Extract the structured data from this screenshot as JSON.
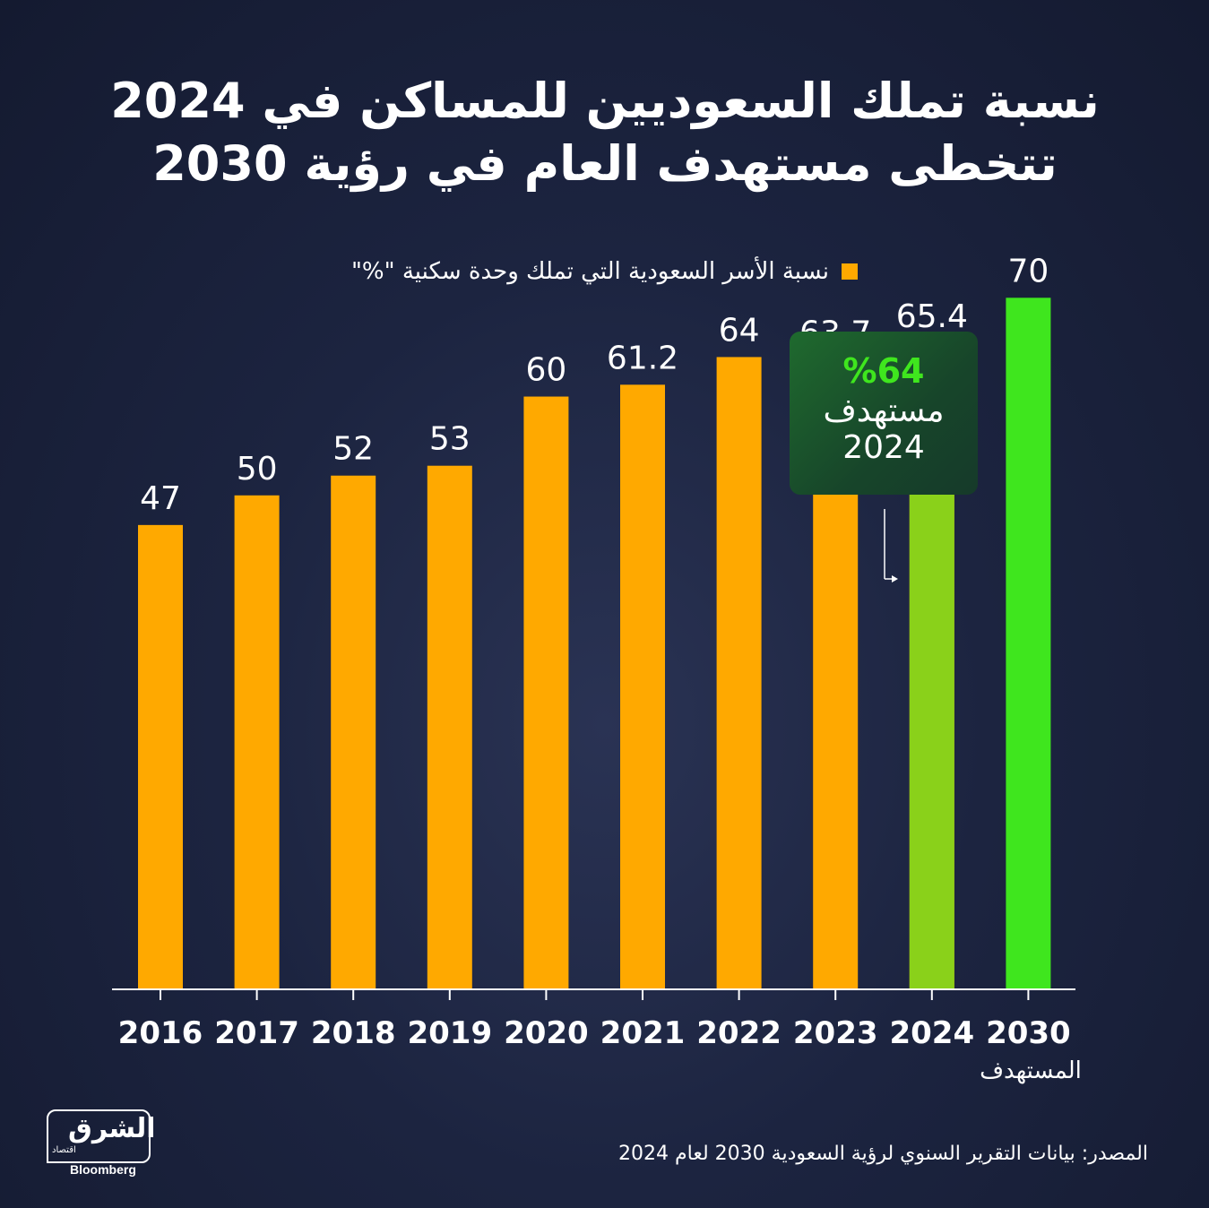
{
  "header": {
    "title": "نسبة تملك السعوديين للمساكن في 2024 تتخطى مستهدف العام في رؤية 2030"
  },
  "legend": {
    "label": "نسبة الأسر السعودية التي تملك وحدة سكنية \"%\"",
    "color": "#ffa900"
  },
  "target_callout": {
    "value": "%64",
    "label": "مستهدف",
    "year": "2024"
  },
  "x_sublabel": "المستهدف",
  "source": "المصدر: بيانات التقرير السنوي لرؤية السعودية 2030 لعام 2024",
  "logo": {
    "arabic": "الشرق",
    "arabic_sub": "اقتصاد",
    "english": "Bloomberg"
  },
  "colors": {
    "bar": "#ffa900",
    "bar_2024_target_fill": "#8ad11a",
    "bar_2030": "#3fe61e",
    "background": "#1c2440"
  },
  "chart_data": {
    "type": "bar",
    "categories": [
      "2016",
      "2017",
      "2018",
      "2019",
      "2020",
      "2021",
      "2022",
      "2023",
      "2024",
      "2030"
    ],
    "values": [
      47,
      50,
      52,
      53,
      60,
      61.2,
      64,
      63.7,
      65.4,
      70
    ],
    "value_labels": [
      "47",
      "50",
      "52",
      "53",
      "60",
      "61.2",
      "64",
      "63.7",
      "65.4",
      "70"
    ],
    "target_2024": 64,
    "ylim": [
      0,
      82
    ],
    "grid": false,
    "legend_position": "top-center"
  }
}
